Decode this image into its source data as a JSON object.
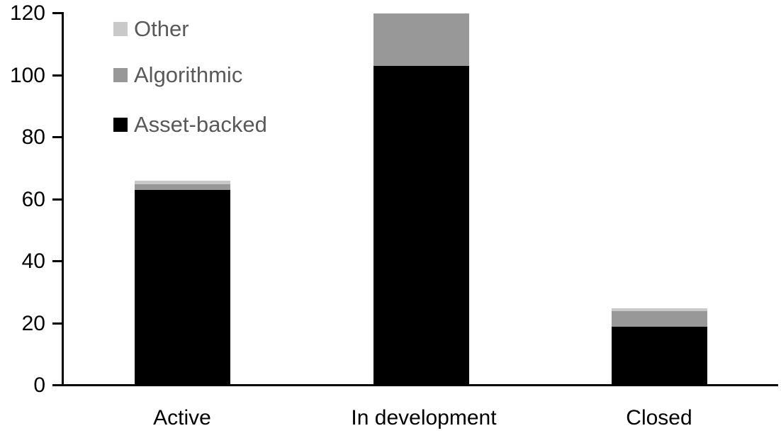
{
  "chart_data": {
    "type": "bar",
    "stacked": true,
    "title": "",
    "xlabel": "",
    "ylabel": "",
    "categories": [
      "Active",
      "In development",
      "Closed"
    ],
    "series": [
      {
        "name": "Asset-backed",
        "color": "#000000",
        "values": [
          63,
          103,
          19
        ]
      },
      {
        "name": "Algorithmic",
        "color": "#989898",
        "values": [
          2,
          17,
          5
        ]
      },
      {
        "name": "Other",
        "color": "#c9c9c9",
        "values": [
          1,
          0,
          1
        ]
      }
    ],
    "totals": [
      66,
      120,
      25
    ],
    "ylim": [
      0,
      120
    ],
    "ytick_step": 20,
    "ytick_labels": [
      "0",
      "20",
      "40",
      "60",
      "80",
      "100",
      "120"
    ],
    "grid": false,
    "legend_position": "top-left-inside",
    "legend_order_top_to_bottom": [
      "Other",
      "Algorithmic",
      "Asset-backed"
    ],
    "legend_text_color": "#595959",
    "axis_color": "#000000",
    "background_color": "#ffffff"
  }
}
